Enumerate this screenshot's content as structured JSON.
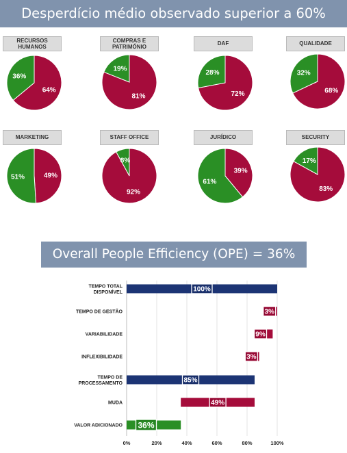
{
  "header": {
    "title": "Desperdício médio observado superior a 60%"
  },
  "ope_title": "Overall People Efficiency (OPE) = 36%",
  "colors": {
    "waste": "#a50c3b",
    "value": "#2a8f25",
    "time": "#1c3474",
    "banner": "#8093ad"
  },
  "chart_data": [
    {
      "type": "pie",
      "title": "RECURSOS\nHUMANOS",
      "slices": [
        {
          "label": "64%",
          "value": 64,
          "kind": "waste"
        },
        {
          "label": "36%",
          "value": 36,
          "kind": "value"
        }
      ]
    },
    {
      "type": "pie",
      "title": "COMPRAS E\nPATRIMÓNIO",
      "slices": [
        {
          "label": "81%",
          "value": 81,
          "kind": "waste"
        },
        {
          "label": "19%",
          "value": 19,
          "kind": "value"
        }
      ]
    },
    {
      "type": "pie",
      "title": "DAF",
      "slices": [
        {
          "label": "72%",
          "value": 72,
          "kind": "waste"
        },
        {
          "label": "28%",
          "value": 28,
          "kind": "value"
        }
      ]
    },
    {
      "type": "pie",
      "title": "QUALIDADE",
      "slices": [
        {
          "label": "68%",
          "value": 68,
          "kind": "waste"
        },
        {
          "label": "32%",
          "value": 32,
          "kind": "value"
        }
      ]
    },
    {
      "type": "pie",
      "title": "MARKETING",
      "slices": [
        {
          "label": "49%",
          "value": 49,
          "kind": "waste"
        },
        {
          "label": "51%",
          "value": 51,
          "kind": "value"
        }
      ]
    },
    {
      "type": "pie",
      "title": "STAFF OFFICE",
      "slices": [
        {
          "label": "92%",
          "value": 92,
          "kind": "waste"
        },
        {
          "label": "8%",
          "value": 8,
          "kind": "value"
        }
      ]
    },
    {
      "type": "pie",
      "title": "JURÍDICO",
      "slices": [
        {
          "label": "39%",
          "value": 39,
          "kind": "waste"
        },
        {
          "label": "61%",
          "value": 61,
          "kind": "value"
        }
      ]
    },
    {
      "type": "pie",
      "title": "SECURITY",
      "slices": [
        {
          "label": "83%",
          "value": 83,
          "kind": "waste"
        },
        {
          "label": "17%",
          "value": 17,
          "kind": "value"
        }
      ]
    },
    {
      "type": "bar",
      "orientation": "horizontal",
      "stacked": "waterfall",
      "categories": [
        "TEMPO TOTAL\nDISPONÍVEL",
        "TEMPO DE GESTÃO",
        "VARIABILIDADE",
        "INFLEXIBILIDADE",
        "TEMPO DE\nPROCESSAMENTO",
        "MUDA",
        "VALOR ADICIONADO"
      ],
      "bars": [
        {
          "start": 0,
          "end": 100,
          "label": "100%",
          "kind": "time"
        },
        {
          "start": 97,
          "end": 100,
          "label": "3%",
          "kind": "waste"
        },
        {
          "start": 88,
          "end": 97,
          "label": "9%",
          "kind": "waste"
        },
        {
          "start": 85,
          "end": 88,
          "label": "3%",
          "kind": "waste"
        },
        {
          "start": 0,
          "end": 85,
          "label": "85%",
          "kind": "time"
        },
        {
          "start": 36,
          "end": 85,
          "label": "49%",
          "kind": "waste"
        },
        {
          "start": 0,
          "end": 36,
          "label": "36%",
          "kind": "value"
        }
      ],
      "xlim": [
        0,
        100
      ],
      "xticks": [
        "0%",
        "20%",
        "40%",
        "60%",
        "80%",
        "100%"
      ],
      "grid": true
    }
  ]
}
